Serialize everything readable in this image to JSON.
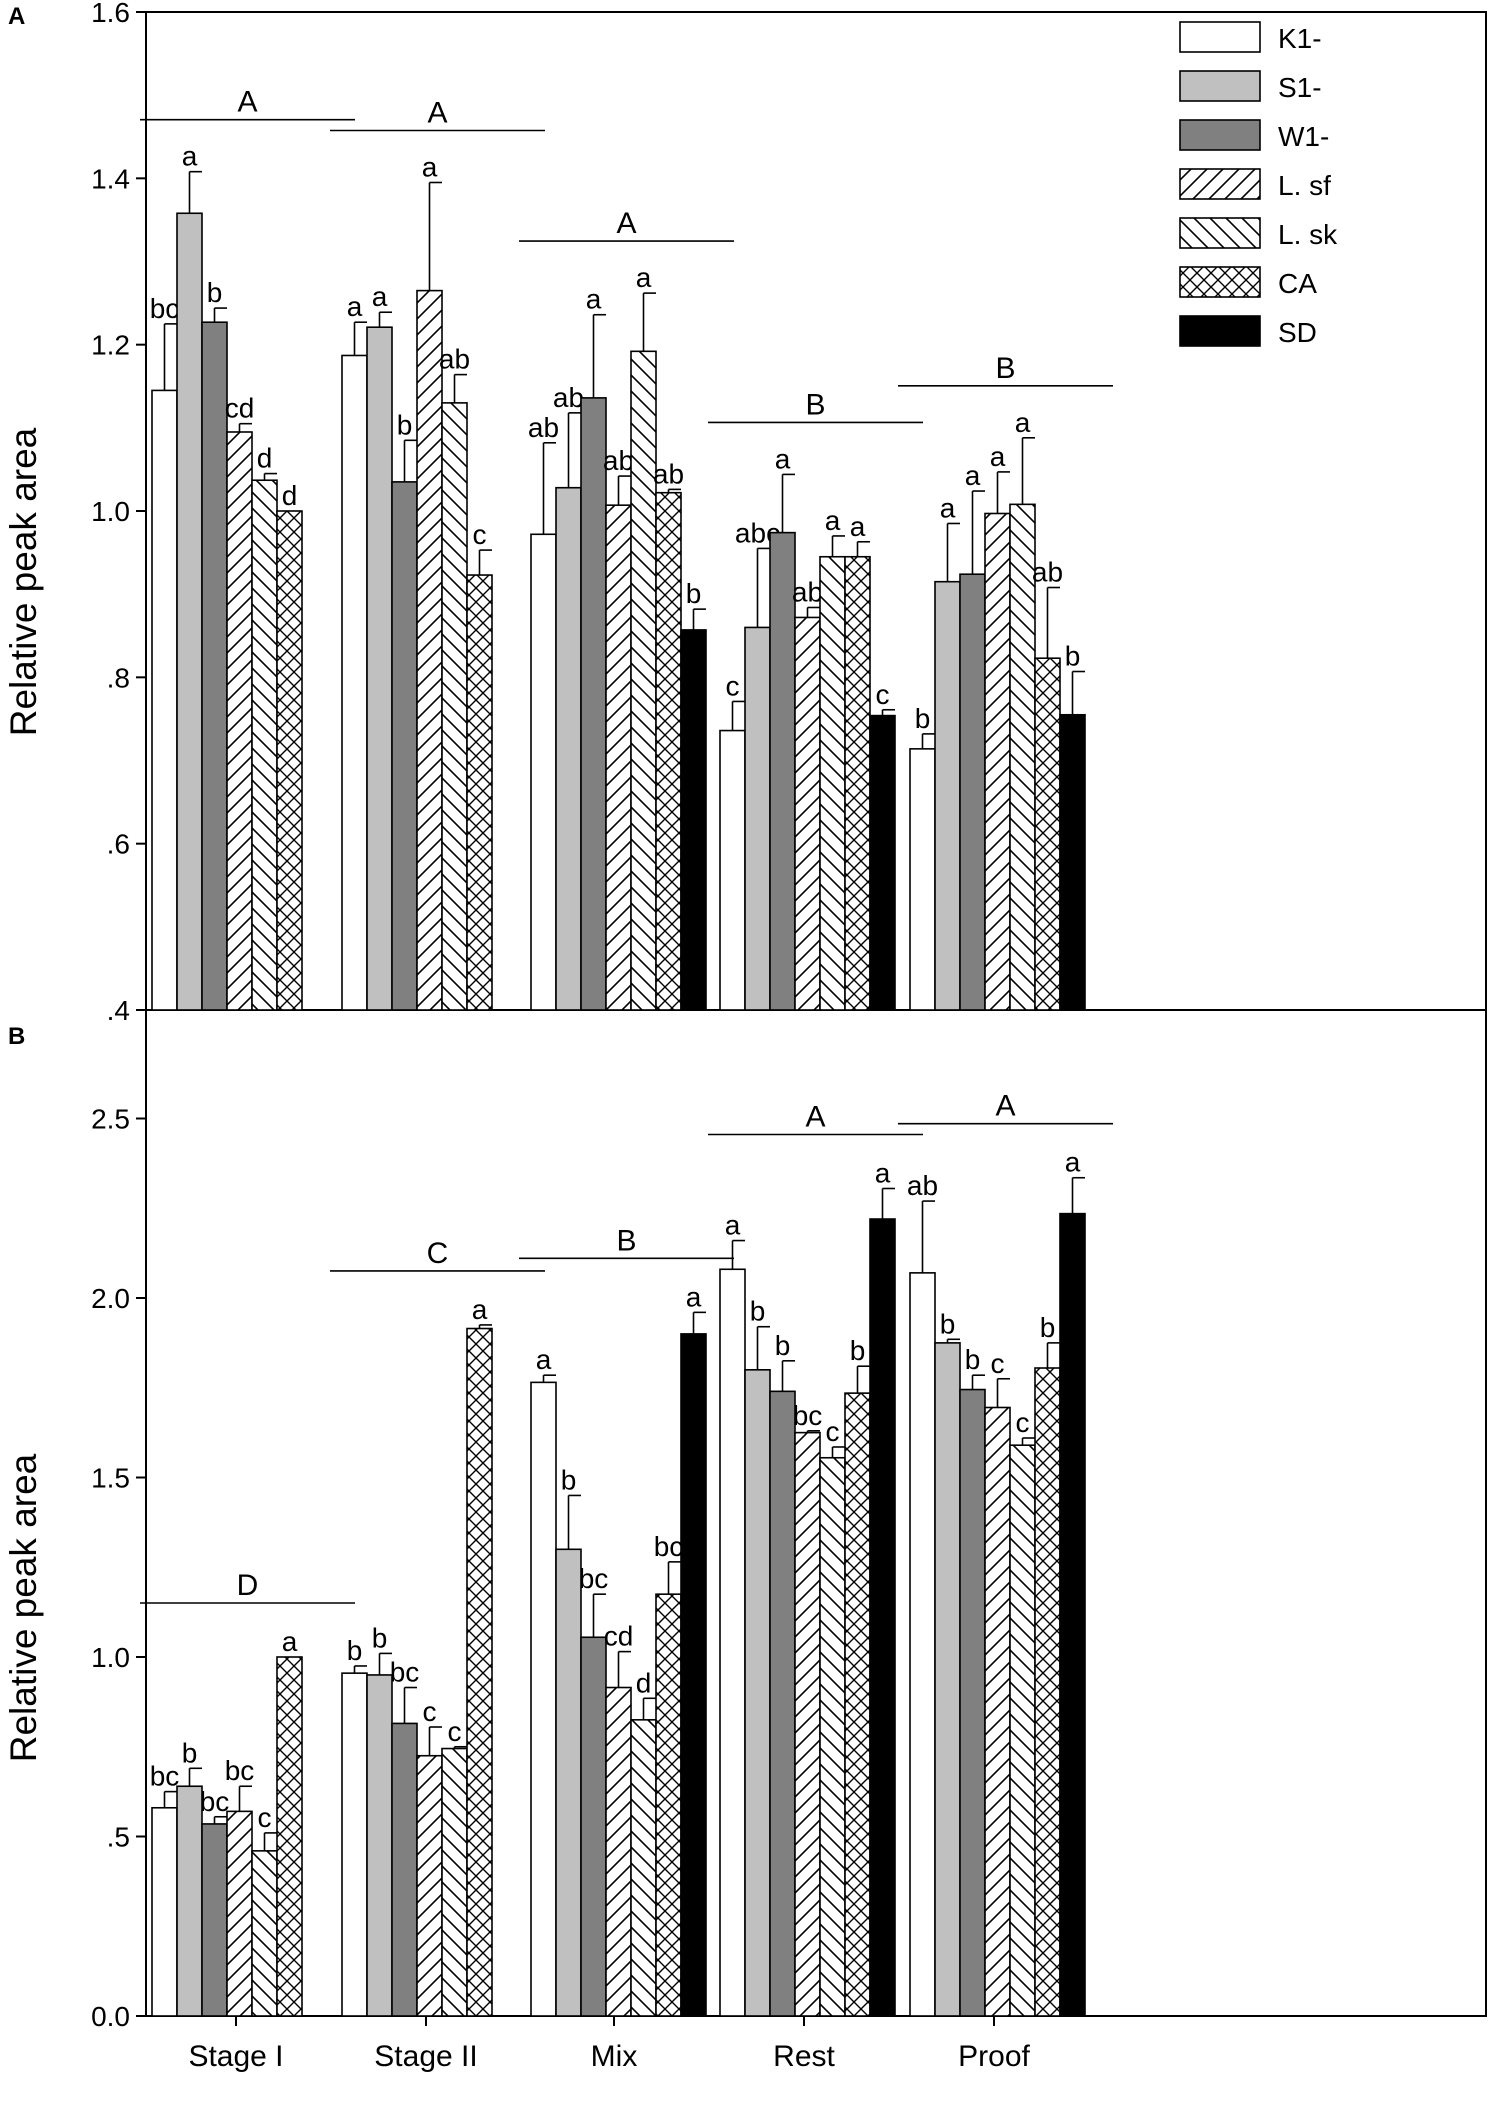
{
  "legend": [
    {
      "label": "K1-",
      "fill": "#ffffff",
      "pattern": "none"
    },
    {
      "label": "S1-",
      "fill": "#c0c0c0",
      "pattern": "none"
    },
    {
      "label": "W1-",
      "fill": "#808080",
      "pattern": "none"
    },
    {
      "label": "L. sf",
      "fill": "#ffffff",
      "pattern": "diag-right"
    },
    {
      "label": "L. sk",
      "fill": "#ffffff",
      "pattern": "diag-left"
    },
    {
      "label": "CA",
      "fill": "#ffffff",
      "pattern": "crosshatch"
    },
    {
      "label": "SD",
      "fill": "#000000",
      "pattern": "none"
    }
  ],
  "chart_data": [
    {
      "panel": "A",
      "type": "bar",
      "ylabel": "Relative peak area",
      "ylim": [
        0.4,
        1.6
      ],
      "yticks": [
        {
          "v": 0.4,
          "label": ".4"
        },
        {
          "v": 0.6,
          "label": ".6"
        },
        {
          "v": 0.8,
          "label": ".8"
        },
        {
          "v": 1.0,
          "label": "1.0"
        },
        {
          "v": 1.2,
          "label": "1.2"
        },
        {
          "v": 1.4,
          "label": "1.4"
        },
        {
          "v": 1.6,
          "label": "1.6"
        }
      ],
      "categories": [
        "Stage I",
        "Stage II",
        "Mix",
        "Rest",
        "Proof"
      ],
      "group_letters": [
        "A",
        "A",
        "A",
        "B",
        "B"
      ],
      "series": [
        {
          "name": "K1-",
          "values": [
            1.145,
            1.187,
            0.972,
            0.736,
            0.714
          ],
          "errors": [
            0.08,
            0.04,
            0.11,
            0.035,
            0.018
          ],
          "letters": [
            "bc",
            "a",
            "ab",
            "c",
            "b"
          ]
        },
        {
          "name": "S1-",
          "values": [
            1.358,
            1.221,
            1.028,
            0.86,
            0.915
          ],
          "errors": [
            0.05,
            0.018,
            0.09,
            0.095,
            0.07
          ],
          "letters": [
            "a",
            "a",
            "ab",
            "abc",
            "a"
          ]
        },
        {
          "name": "W1-",
          "values": [
            1.227,
            1.035,
            1.136,
            0.974,
            0.924
          ],
          "errors": [
            0.017,
            0.05,
            0.1,
            0.07,
            0.1
          ],
          "letters": [
            "b",
            "b",
            "a",
            "a",
            "a"
          ]
        },
        {
          "name": "L. sf",
          "values": [
            1.095,
            1.265,
            1.007,
            0.872,
            0.997
          ],
          "errors": [
            0.01,
            0.13,
            0.035,
            0.012,
            0.05
          ],
          "letters": [
            "cd",
            "a",
            "ab",
            "ab",
            "a"
          ]
        },
        {
          "name": "L. sk",
          "values": [
            1.037,
            1.13,
            1.192,
            0.945,
            1.008
          ],
          "errors": [
            0.008,
            0.034,
            0.07,
            0.025,
            0.08
          ],
          "letters": [
            "d",
            "ab",
            "a",
            "a",
            "a"
          ]
        },
        {
          "name": "CA",
          "values": [
            1.0,
            0.923,
            1.022,
            0.945,
            0.823
          ],
          "errors": [
            0.0,
            0.03,
            0.004,
            0.018,
            0.085
          ],
          "letters": [
            "d",
            "c",
            "ab",
            "a",
            "ab"
          ]
        },
        {
          "name": "SD",
          "values": [
            null,
            null,
            0.857,
            0.754,
            0.755
          ],
          "errors": [
            0,
            0,
            0.025,
            0.007,
            0.052
          ],
          "letters": [
            "",
            "",
            "b",
            "c",
            "b"
          ]
        }
      ]
    },
    {
      "panel": "B",
      "type": "bar",
      "ylabel": "Relative peak area",
      "ylim": [
        0.0,
        2.8
      ],
      "yticks": [
        {
          "v": 0.0,
          "label": "0.0"
        },
        {
          "v": 0.5,
          "label": ".5"
        },
        {
          "v": 1.0,
          "label": "1.0"
        },
        {
          "v": 1.5,
          "label": "1.5"
        },
        {
          "v": 2.0,
          "label": "2.0"
        },
        {
          "v": 2.5,
          "label": "2.5"
        }
      ],
      "categories": [
        "Stage I",
        "Stage II",
        "Mix",
        "Rest",
        "Proof"
      ],
      "group_letters": [
        "D",
        "C",
        "B",
        "A",
        "A"
      ],
      "series": [
        {
          "name": "K1-",
          "values": [
            0.58,
            0.955,
            1.765,
            2.08,
            2.07
          ],
          "errors": [
            0.045,
            0.02,
            0.02,
            0.08,
            0.2
          ],
          "letters": [
            "bc",
            "b",
            "a",
            "a",
            "ab"
          ]
        },
        {
          "name": "S1-",
          "values": [
            0.64,
            0.95,
            1.3,
            1.8,
            1.875
          ],
          "errors": [
            0.05,
            0.06,
            0.15,
            0.12,
            0.01
          ],
          "letters": [
            "b",
            "b",
            "b",
            "b",
            "b"
          ]
        },
        {
          "name": "W1-",
          "values": [
            0.535,
            0.815,
            1.055,
            1.74,
            1.745
          ],
          "errors": [
            0.02,
            0.1,
            0.12,
            0.085,
            0.04
          ],
          "letters": [
            "bc",
            "bc",
            "bc",
            "b",
            "b"
          ]
        },
        {
          "name": "L. sf",
          "values": [
            0.57,
            0.725,
            0.915,
            1.625,
            1.695
          ],
          "errors": [
            0.07,
            0.08,
            0.1,
            0.005,
            0.08
          ],
          "letters": [
            "bc",
            "c",
            "cd",
            "bc",
            "c"
          ]
        },
        {
          "name": "L. sk",
          "values": [
            0.46,
            0.745,
            0.825,
            1.555,
            1.59
          ],
          "errors": [
            0.05,
            0.005,
            0.06,
            0.03,
            0.02
          ],
          "letters": [
            "c",
            "c",
            "d",
            "c",
            "c"
          ]
        },
        {
          "name": "CA",
          "values": [
            1.0,
            1.915,
            1.175,
            1.735,
            1.805
          ],
          "errors": [
            0.0,
            0.01,
            0.09,
            0.075,
            0.07
          ],
          "letters": [
            "a",
            "a",
            "bc",
            "b",
            "b"
          ]
        },
        {
          "name": "SD",
          "values": [
            null,
            null,
            1.9,
            2.22,
            2.235
          ],
          "errors": [
            0,
            0,
            0.06,
            0.085,
            0.1
          ],
          "letters": [
            "",
            "",
            "a",
            "a",
            "a"
          ]
        }
      ]
    }
  ]
}
